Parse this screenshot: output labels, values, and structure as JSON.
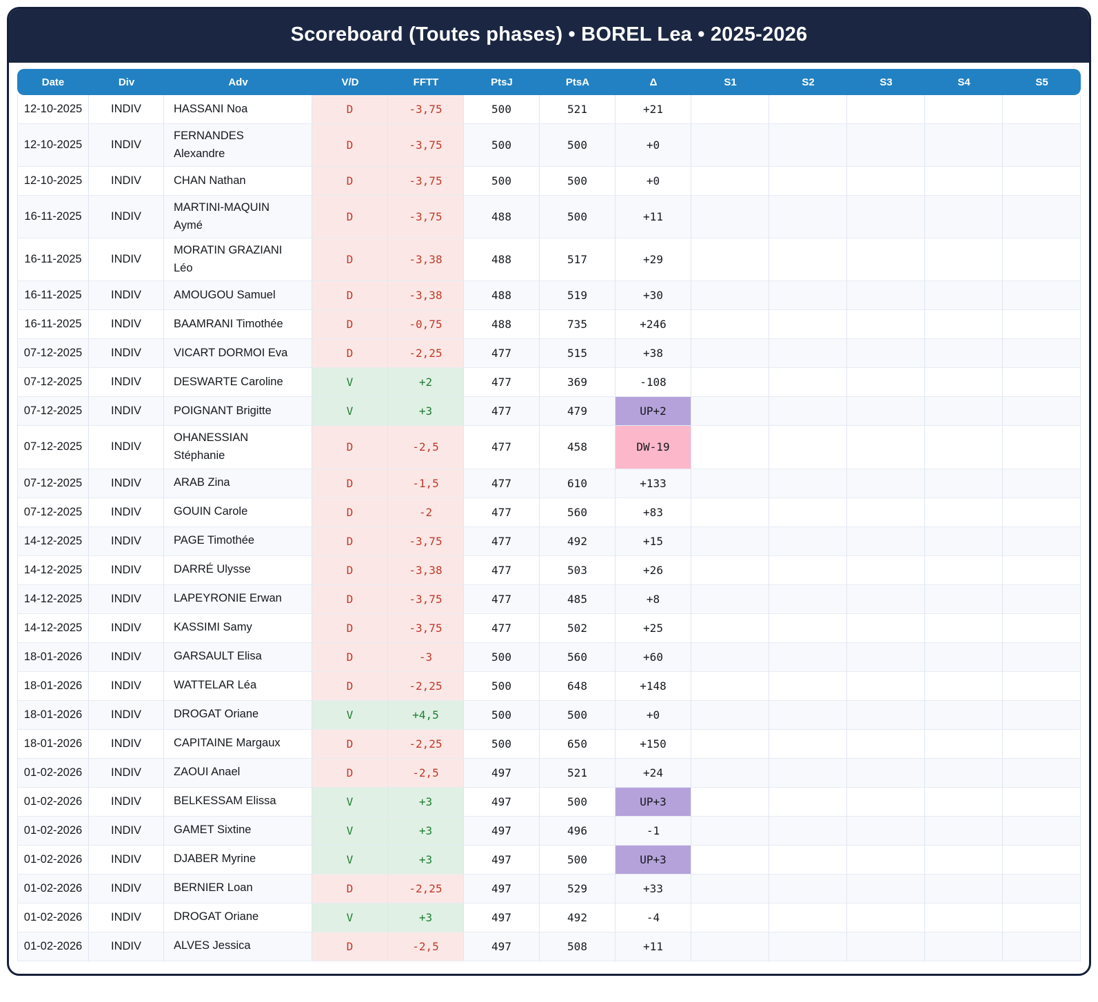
{
  "header": {
    "title": "Scoreboard (Toutes phases) • BOREL Lea • 2025-2026"
  },
  "columns": [
    "Date",
    "Div",
    "Adv",
    "V/D",
    "FFTT",
    "PtsJ",
    "PtsA",
    "Δ",
    "S1",
    "S2",
    "S3",
    "S4",
    "S5"
  ],
  "colors": {
    "banner_bg": "#1b2742",
    "header_bg": "#2281c3",
    "loss_bg": "#fbe8e6",
    "loss_text": "#c0392b",
    "win_bg": "#e0f0e4",
    "win_text": "#1f7e33",
    "delta_up_bg": "#b5a2da",
    "delta_down_bg": "#fcb7ca",
    "row_alt_bg": "#f7f9fd"
  },
  "rows": [
    {
      "date": "12-10-2025",
      "div": "INDIV",
      "adv": "HASSANI Noa",
      "vd": "D",
      "fftt": "-3,75",
      "ptsj": "500",
      "ptsa": "521",
      "delta": "+21",
      "delta_style": "none"
    },
    {
      "date": "12-10-2025",
      "div": "INDIV",
      "adv": "FERNANDES Alexandre",
      "vd": "D",
      "fftt": "-3,75",
      "ptsj": "500",
      "ptsa": "500",
      "delta": "+0",
      "delta_style": "none"
    },
    {
      "date": "12-10-2025",
      "div": "INDIV",
      "adv": "CHAN Nathan",
      "vd": "D",
      "fftt": "-3,75",
      "ptsj": "500",
      "ptsa": "500",
      "delta": "+0",
      "delta_style": "none"
    },
    {
      "date": "16-11-2025",
      "div": "INDIV",
      "adv": "MARTINI-MAQUIN Aymé",
      "vd": "D",
      "fftt": "-3,75",
      "ptsj": "488",
      "ptsa": "500",
      "delta": "+11",
      "delta_style": "none"
    },
    {
      "date": "16-11-2025",
      "div": "INDIV",
      "adv": "MORATIN GRAZIANI Léo",
      "vd": "D",
      "fftt": "-3,38",
      "ptsj": "488",
      "ptsa": "517",
      "delta": "+29",
      "delta_style": "none"
    },
    {
      "date": "16-11-2025",
      "div": "INDIV",
      "adv": "AMOUGOU Samuel",
      "vd": "D",
      "fftt": "-3,38",
      "ptsj": "488",
      "ptsa": "519",
      "delta": "+30",
      "delta_style": "none"
    },
    {
      "date": "16-11-2025",
      "div": "INDIV",
      "adv": "BAAMRANI Timothée",
      "vd": "D",
      "fftt": "-0,75",
      "ptsj": "488",
      "ptsa": "735",
      "delta": "+246",
      "delta_style": "none"
    },
    {
      "date": "07-12-2025",
      "div": "INDIV",
      "adv": "VICART DORMOI Eva",
      "vd": "D",
      "fftt": "-2,25",
      "ptsj": "477",
      "ptsa": "515",
      "delta": "+38",
      "delta_style": "none"
    },
    {
      "date": "07-12-2025",
      "div": "INDIV",
      "adv": "DESWARTE Caroline",
      "vd": "V",
      "fftt": "+2",
      "ptsj": "477",
      "ptsa": "369",
      "delta": "-108",
      "delta_style": "none"
    },
    {
      "date": "07-12-2025",
      "div": "INDIV",
      "adv": "POIGNANT Brigitte",
      "vd": "V",
      "fftt": "+3",
      "ptsj": "477",
      "ptsa": "479",
      "delta": "UP+2",
      "delta_style": "up"
    },
    {
      "date": "07-12-2025",
      "div": "INDIV",
      "adv": "OHANESSIAN Stéphanie",
      "vd": "D",
      "fftt": "-2,5",
      "ptsj": "477",
      "ptsa": "458",
      "delta": "DW-19",
      "delta_style": "down"
    },
    {
      "date": "07-12-2025",
      "div": "INDIV",
      "adv": "ARAB Zina",
      "vd": "D",
      "fftt": "-1,5",
      "ptsj": "477",
      "ptsa": "610",
      "delta": "+133",
      "delta_style": "none"
    },
    {
      "date": "07-12-2025",
      "div": "INDIV",
      "adv": "GOUIN Carole",
      "vd": "D",
      "fftt": "-2",
      "ptsj": "477",
      "ptsa": "560",
      "delta": "+83",
      "delta_style": "none"
    },
    {
      "date": "14-12-2025",
      "div": "INDIV",
      "adv": "PAGE Timothée",
      "vd": "D",
      "fftt": "-3,75",
      "ptsj": "477",
      "ptsa": "492",
      "delta": "+15",
      "delta_style": "none"
    },
    {
      "date": "14-12-2025",
      "div": "INDIV",
      "adv": "DARRÉ Ulysse",
      "vd": "D",
      "fftt": "-3,38",
      "ptsj": "477",
      "ptsa": "503",
      "delta": "+26",
      "delta_style": "none"
    },
    {
      "date": "14-12-2025",
      "div": "INDIV",
      "adv": "LAPEYRONIE Erwan",
      "vd": "D",
      "fftt": "-3,75",
      "ptsj": "477",
      "ptsa": "485",
      "delta": "+8",
      "delta_style": "none"
    },
    {
      "date": "14-12-2025",
      "div": "INDIV",
      "adv": "KASSIMI Samy",
      "vd": "D",
      "fftt": "-3,75",
      "ptsj": "477",
      "ptsa": "502",
      "delta": "+25",
      "delta_style": "none"
    },
    {
      "date": "18-01-2026",
      "div": "INDIV",
      "adv": "GARSAULT Elisa",
      "vd": "D",
      "fftt": "-3",
      "ptsj": "500",
      "ptsa": "560",
      "delta": "+60",
      "delta_style": "none"
    },
    {
      "date": "18-01-2026",
      "div": "INDIV",
      "adv": "WATTELAR Léa",
      "vd": "D",
      "fftt": "-2,25",
      "ptsj": "500",
      "ptsa": "648",
      "delta": "+148",
      "delta_style": "none"
    },
    {
      "date": "18-01-2026",
      "div": "INDIV",
      "adv": "DROGAT Oriane",
      "vd": "V",
      "fftt": "+4,5",
      "ptsj": "500",
      "ptsa": "500",
      "delta": "+0",
      "delta_style": "none"
    },
    {
      "date": "18-01-2026",
      "div": "INDIV",
      "adv": "CAPITAINE Margaux",
      "vd": "D",
      "fftt": "-2,25",
      "ptsj": "500",
      "ptsa": "650",
      "delta": "+150",
      "delta_style": "none"
    },
    {
      "date": "01-02-2026",
      "div": "INDIV",
      "adv": "ZAOUI Anael",
      "vd": "D",
      "fftt": "-2,5",
      "ptsj": "497",
      "ptsa": "521",
      "delta": "+24",
      "delta_style": "none"
    },
    {
      "date": "01-02-2026",
      "div": "INDIV",
      "adv": "BELKESSAM Elissa",
      "vd": "V",
      "fftt": "+3",
      "ptsj": "497",
      "ptsa": "500",
      "delta": "UP+3",
      "delta_style": "up"
    },
    {
      "date": "01-02-2026",
      "div": "INDIV",
      "adv": "GAMET Sixtine",
      "vd": "V",
      "fftt": "+3",
      "ptsj": "497",
      "ptsa": "496",
      "delta": "-1",
      "delta_style": "none"
    },
    {
      "date": "01-02-2026",
      "div": "INDIV",
      "adv": "DJABER Myrine",
      "vd": "V",
      "fftt": "+3",
      "ptsj": "497",
      "ptsa": "500",
      "delta": "UP+3",
      "delta_style": "up"
    },
    {
      "date": "01-02-2026",
      "div": "INDIV",
      "adv": "BERNIER Loan",
      "vd": "D",
      "fftt": "-2,25",
      "ptsj": "497",
      "ptsa": "529",
      "delta": "+33",
      "delta_style": "none"
    },
    {
      "date": "01-02-2026",
      "div": "INDIV",
      "adv": "DROGAT Oriane",
      "vd": "V",
      "fftt": "+3",
      "ptsj": "497",
      "ptsa": "492",
      "delta": "-4",
      "delta_style": "none"
    },
    {
      "date": "01-02-2026",
      "div": "INDIV",
      "adv": "ALVES Jessica",
      "vd": "D",
      "fftt": "-2,5",
      "ptsj": "497",
      "ptsa": "508",
      "delta": "+11",
      "delta_style": "none"
    }
  ]
}
